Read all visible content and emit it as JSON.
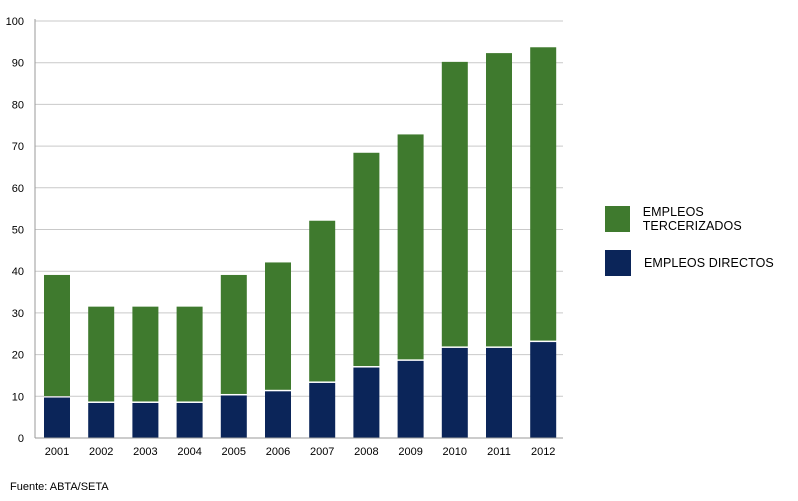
{
  "chart_data": {
    "type": "bar",
    "stacked": true,
    "categories": [
      "2001",
      "2002",
      "2003",
      "2004",
      "2005",
      "2006",
      "2007",
      "2008",
      "2009",
      "2010",
      "2011",
      "2012"
    ],
    "series": [
      {
        "name": "EMPLEOS DIRECTOS",
        "color": "#0b2559",
        "values": [
          9.7,
          8.4,
          8.4,
          8.4,
          10.2,
          11.2,
          13.2,
          16.9,
          18.5,
          21.6,
          21.6,
          23.0
        ]
      },
      {
        "name": "EMPLEOS TERCERIZADOS",
        "color": "#3f7a2e",
        "values": [
          29.4,
          23.1,
          23.1,
          23.1,
          28.9,
          30.9,
          38.9,
          51.5,
          54.3,
          68.6,
          70.7,
          70.7
        ]
      }
    ],
    "yticks": [
      0,
      10,
      20,
      30,
      40,
      50,
      60,
      70,
      80,
      90,
      100
    ],
    "ylim": [
      0,
      100
    ],
    "grid": true,
    "legend_position": "right",
    "legend_order": [
      "EMPLEOS TERCERIZADOS",
      "EMPLEOS DIRECTOS"
    ]
  },
  "source_text": "Fuente: ABTA/SETA"
}
